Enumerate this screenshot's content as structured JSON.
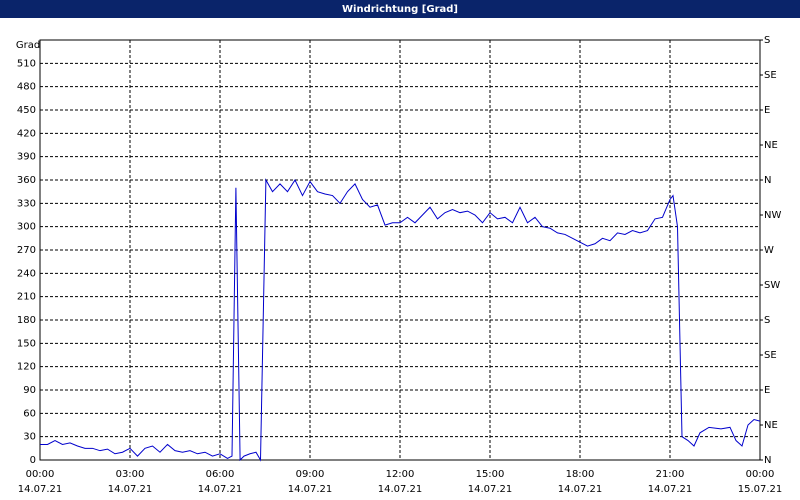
{
  "chart_data": {
    "type": "line",
    "title": "Windrichtung [Grad]",
    "y_label": "Grad",
    "x": [
      0,
      0.25,
      0.5,
      0.75,
      1,
      1.25,
      1.5,
      1.75,
      2,
      2.25,
      2.5,
      2.75,
      3,
      3.25,
      3.5,
      3.75,
      4,
      4.25,
      4.5,
      4.75,
      5,
      5.25,
      5.5,
      5.75,
      6,
      6.25,
      6.4,
      6.53,
      6.67,
      6.8,
      7,
      7.2,
      7.35,
      7.53,
      7.75,
      8,
      8.25,
      8.5,
      8.75,
      9,
      9.25,
      9.5,
      9.75,
      10,
      10.25,
      10.5,
      10.75,
      11,
      11.25,
      11.5,
      11.75,
      12,
      12.25,
      12.5,
      12.75,
      13,
      13.25,
      13.5,
      13.75,
      14,
      14.25,
      14.5,
      14.75,
      15,
      15.25,
      15.5,
      15.75,
      16,
      16.25,
      16.5,
      16.75,
      17,
      17.25,
      17.5,
      17.75,
      18,
      18.25,
      18.5,
      18.75,
      19,
      19.25,
      19.5,
      19.75,
      20,
      20.25,
      20.5,
      20.75,
      21,
      21.1,
      21.25,
      21.4,
      21.6,
      21.8,
      22,
      22.3,
      22.7,
      23,
      23.2,
      23.4,
      23.6,
      23.8,
      24
    ],
    "series": [
      {
        "name": "Windrichtung",
        "color": "#0000cc",
        "values": [
          20,
          20,
          25,
          20,
          22,
          18,
          15,
          15,
          12,
          14,
          8,
          10,
          15,
          5,
          15,
          18,
          10,
          20,
          12,
          10,
          12,
          8,
          10,
          5,
          8,
          2,
          5,
          350,
          0,
          5,
          8,
          10,
          0,
          360,
          345,
          355,
          345,
          360,
          340,
          358,
          345,
          342,
          340,
          330,
          345,
          355,
          335,
          325,
          328,
          302,
          305,
          305,
          312,
          305,
          315,
          325,
          310,
          318,
          322,
          318,
          320,
          315,
          305,
          318,
          310,
          312,
          305,
          325,
          305,
          312,
          300,
          298,
          292,
          290,
          285,
          280,
          275,
          278,
          285,
          282,
          292,
          290,
          295,
          292,
          295,
          310,
          312,
          335,
          340,
          300,
          30,
          25,
          18,
          35,
          42,
          40,
          42,
          25,
          18,
          45,
          52,
          50
        ]
      }
    ],
    "xlim": [
      0,
      24
    ],
    "xticks": [
      {
        "value": 0,
        "label": "00:00"
      },
      {
        "value": 3,
        "label": "03:00"
      },
      {
        "value": 6,
        "label": "06:00"
      },
      {
        "value": 9,
        "label": "09:00"
      },
      {
        "value": 12,
        "label": "12:00"
      },
      {
        "value": 15,
        "label": "15:00"
      },
      {
        "value": 18,
        "label": "18:00"
      },
      {
        "value": 21,
        "label": "21:00"
      },
      {
        "value": 24,
        "label": "00:00"
      }
    ],
    "xtick_dates": [
      "14.07.21",
      "14.07.21",
      "14.07.21",
      "14.07.21",
      "14.07.21",
      "14.07.21",
      "14.07.21",
      "14.07.21",
      "15.07.21"
    ],
    "ylim": [
      0,
      540
    ],
    "yticks": [
      0,
      30,
      60,
      90,
      120,
      150,
      180,
      210,
      240,
      270,
      300,
      330,
      360,
      390,
      420,
      450,
      480,
      510
    ],
    "y2lim": [
      0,
      540
    ],
    "y2ticks": [
      {
        "value": 0,
        "label": "N"
      },
      {
        "value": 45,
        "label": "NE"
      },
      {
        "value": 90,
        "label": "E"
      },
      {
        "value": 135,
        "label": "SE"
      },
      {
        "value": 180,
        "label": "S"
      },
      {
        "value": 225,
        "label": "SW"
      },
      {
        "value": 270,
        "label": "W"
      },
      {
        "value": 315,
        "label": "NW"
      },
      {
        "value": 360,
        "label": "N"
      },
      {
        "value": 405,
        "label": "NE"
      },
      {
        "value": 450,
        "label": "E"
      },
      {
        "value": 495,
        "label": "SE"
      },
      {
        "value": 540,
        "label": "S"
      }
    ],
    "grid": true
  }
}
